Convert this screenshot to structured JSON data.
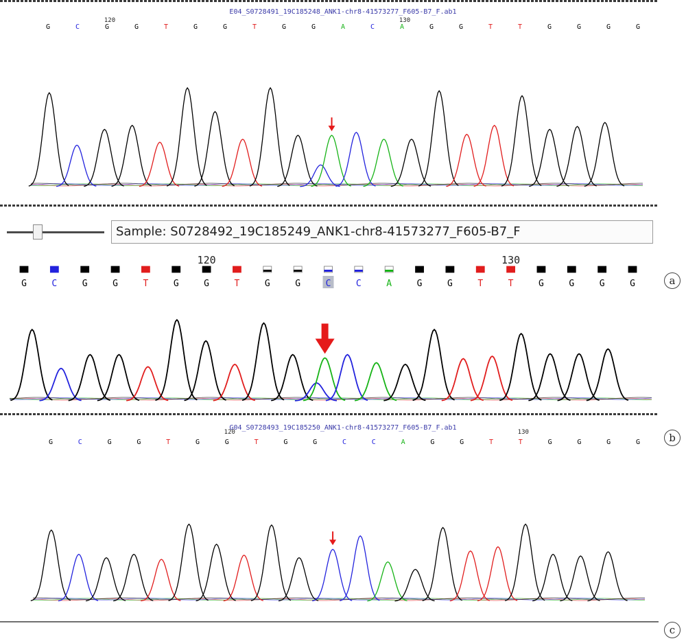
{
  "panel_labels": {
    "a": "a",
    "b": "b",
    "c": "c"
  },
  "toolbar": {
    "sample_prefix": "Sample: ",
    "sample_name": "S0728492_19C185249_ANK1-chr8-41573277_F605-B7_F"
  },
  "base_colors": {
    "G": "#000000",
    "C": "#2222dd",
    "T": "#e11d1d",
    "A": "#16b316"
  },
  "chart_data": [
    {
      "type": "chromatogram",
      "panel": "a",
      "title": "E04_S0728491_19C185248_ANK1-chr8-41573277_F605-B7_F.ab1",
      "bases": [
        "G",
        "C",
        "G",
        "G",
        "T",
        "G",
        "G",
        "T",
        "G",
        "G",
        "A",
        "C",
        "A",
        "G",
        "G",
        "T",
        "T",
        "G",
        "G",
        "G",
        "G"
      ],
      "position_labels": [
        {
          "label": "120",
          "base_index": 2
        },
        {
          "label": "130",
          "base_index": 12
        }
      ],
      "marked_base_index": 10,
      "peaks": [
        {
          "base": "G",
          "height": 0.95,
          "pos": 0.03
        },
        {
          "base": "C",
          "height": 0.42,
          "pos": 0.075
        },
        {
          "base": "G",
          "height": 0.58,
          "pos": 0.12
        },
        {
          "base": "G",
          "height": 0.62,
          "pos": 0.165
        },
        {
          "base": "T",
          "height": 0.45,
          "pos": 0.21
        },
        {
          "base": "G",
          "height": 1.0,
          "pos": 0.255
        },
        {
          "base": "G",
          "height": 0.76,
          "pos": 0.3
        },
        {
          "base": "T",
          "height": 0.48,
          "pos": 0.345
        },
        {
          "base": "G",
          "height": 1.0,
          "pos": 0.39
        },
        {
          "base": "G",
          "height": 0.52,
          "pos": 0.435
        },
        {
          "base": "C",
          "height": 0.22,
          "pos": 0.472
        },
        {
          "base": "A",
          "height": 0.52,
          "pos": 0.49
        },
        {
          "base": "C",
          "height": 0.55,
          "pos": 0.53
        },
        {
          "base": "A",
          "height": 0.48,
          "pos": 0.575
        },
        {
          "base": "G",
          "height": 0.48,
          "pos": 0.62
        },
        {
          "base": "G",
          "height": 0.97,
          "pos": 0.665
        },
        {
          "base": "T",
          "height": 0.53,
          "pos": 0.71
        },
        {
          "base": "T",
          "height": 0.62,
          "pos": 0.755
        },
        {
          "base": "G",
          "height": 0.92,
          "pos": 0.8
        },
        {
          "base": "G",
          "height": 0.58,
          "pos": 0.845
        },
        {
          "base": "G",
          "height": 0.61,
          "pos": 0.89
        },
        {
          "base": "G",
          "height": 0.65,
          "pos": 0.935
        }
      ]
    },
    {
      "type": "chromatogram",
      "panel": "b",
      "bases": [
        "G",
        "C",
        "G",
        "G",
        "T",
        "G",
        "G",
        "T",
        "G",
        "G",
        "C",
        "C",
        "A",
        "G",
        "G",
        "T",
        "T",
        "G",
        "G",
        "G",
        "G"
      ],
      "position_labels": [
        {
          "label": "120",
          "base_index": 6
        },
        {
          "label": "130",
          "base_index": 16
        }
      ],
      "marked_base_index": 10,
      "peaks": [
        {
          "base": "G",
          "height": 0.88,
          "pos": 0.035
        },
        {
          "base": "C",
          "height": 0.4,
          "pos": 0.08
        },
        {
          "base": "G",
          "height": 0.57,
          "pos": 0.125
        },
        {
          "base": "G",
          "height": 0.57,
          "pos": 0.17
        },
        {
          "base": "T",
          "height": 0.42,
          "pos": 0.215
        },
        {
          "base": "G",
          "height": 1.0,
          "pos": 0.26
        },
        {
          "base": "G",
          "height": 0.74,
          "pos": 0.305
        },
        {
          "base": "T",
          "height": 0.45,
          "pos": 0.35
        },
        {
          "base": "G",
          "height": 0.96,
          "pos": 0.395
        },
        {
          "base": "G",
          "height": 0.57,
          "pos": 0.44
        },
        {
          "base": "C",
          "height": 0.22,
          "pos": 0.477
        },
        {
          "base": "A",
          "height": 0.53,
          "pos": 0.49
        },
        {
          "base": "C",
          "height": 0.57,
          "pos": 0.525
        },
        {
          "base": "A",
          "height": 0.47,
          "pos": 0.57
        },
        {
          "base": "G",
          "height": 0.45,
          "pos": 0.615
        },
        {
          "base": "G",
          "height": 0.88,
          "pos": 0.66
        },
        {
          "base": "T",
          "height": 0.52,
          "pos": 0.705
        },
        {
          "base": "T",
          "height": 0.55,
          "pos": 0.75
        },
        {
          "base": "G",
          "height": 0.83,
          "pos": 0.795
        },
        {
          "base": "G",
          "height": 0.58,
          "pos": 0.84
        },
        {
          "base": "G",
          "height": 0.58,
          "pos": 0.885
        },
        {
          "base": "G",
          "height": 0.64,
          "pos": 0.93
        }
      ]
    },
    {
      "type": "chromatogram",
      "panel": "c",
      "title": "G04_S0728493_19C185250_ANK1-chr8-41573277_F605-B7_F.ab1",
      "bases": [
        "G",
        "C",
        "G",
        "G",
        "T",
        "G",
        "G",
        "T",
        "G",
        "G",
        "C",
        "C",
        "A",
        "G",
        "G",
        "T",
        "T",
        "G",
        "G",
        "G",
        "G"
      ],
      "position_labels": [
        {
          "label": "120",
          "base_index": 6
        },
        {
          "label": "130",
          "base_index": 16
        }
      ],
      "marked_base_index": 10,
      "peaks": [
        {
          "base": "G",
          "height": 0.85,
          "pos": 0.03
        },
        {
          "base": "C",
          "height": 0.56,
          "pos": 0.075
        },
        {
          "base": "G",
          "height": 0.52,
          "pos": 0.12
        },
        {
          "base": "G",
          "height": 0.56,
          "pos": 0.165
        },
        {
          "base": "T",
          "height": 0.5,
          "pos": 0.21
        },
        {
          "base": "G",
          "height": 0.92,
          "pos": 0.255
        },
        {
          "base": "G",
          "height": 0.68,
          "pos": 0.3
        },
        {
          "base": "T",
          "height": 0.55,
          "pos": 0.345
        },
        {
          "base": "G",
          "height": 0.91,
          "pos": 0.39
        },
        {
          "base": "G",
          "height": 0.52,
          "pos": 0.435
        },
        {
          "base": "C",
          "height": 0.62,
          "pos": 0.49
        },
        {
          "base": "C",
          "height": 0.78,
          "pos": 0.535
        },
        {
          "base": "A",
          "height": 0.47,
          "pos": 0.58
        },
        {
          "base": "G",
          "height": 0.38,
          "pos": 0.625
        },
        {
          "base": "G",
          "height": 0.88,
          "pos": 0.67
        },
        {
          "base": "T",
          "height": 0.6,
          "pos": 0.715
        },
        {
          "base": "T",
          "height": 0.65,
          "pos": 0.76
        },
        {
          "base": "G",
          "height": 0.92,
          "pos": 0.805
        },
        {
          "base": "G",
          "height": 0.56,
          "pos": 0.85
        },
        {
          "base": "G",
          "height": 0.54,
          "pos": 0.895
        },
        {
          "base": "G",
          "height": 0.59,
          "pos": 0.94
        }
      ]
    }
  ]
}
